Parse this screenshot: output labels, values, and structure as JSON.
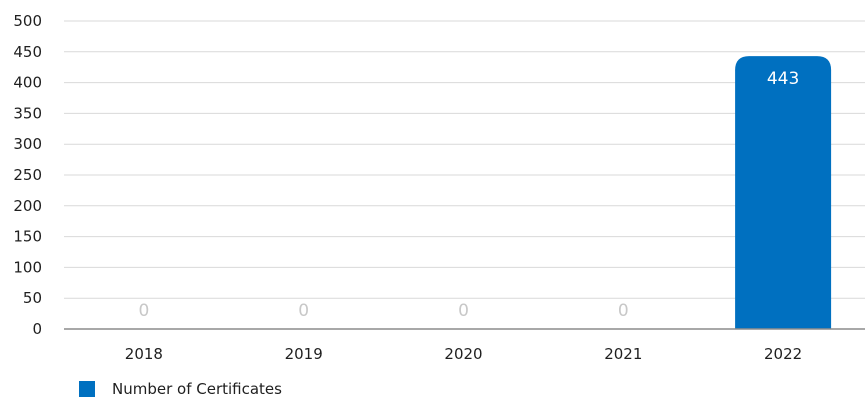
{
  "chart_data": {
    "type": "bar",
    "categories": [
      "2018",
      "2019",
      "2020",
      "2021",
      "2022"
    ],
    "series": [
      {
        "name": "Number of Certificates",
        "values": [
          0,
          0,
          0,
          0,
          443
        ],
        "data_labels": [
          "0",
          "0",
          "0",
          "0",
          "443"
        ],
        "color": "#0070c0"
      }
    ],
    "y_ticks": [
      "0",
      "50",
      "100",
      "150",
      "200",
      "250",
      "300",
      "350",
      "400",
      "450",
      "500"
    ],
    "ylim": [
      0,
      500
    ],
    "grid": true,
    "legend_position": "bottom-left"
  },
  "colors": {
    "bar": "#0070c0",
    "grid": "#d9d9d9",
    "axis": "#8c8c8c",
    "label_inside": "#ffffff",
    "label_zero": "#c8c8c8",
    "text": "#1f1f1f"
  }
}
